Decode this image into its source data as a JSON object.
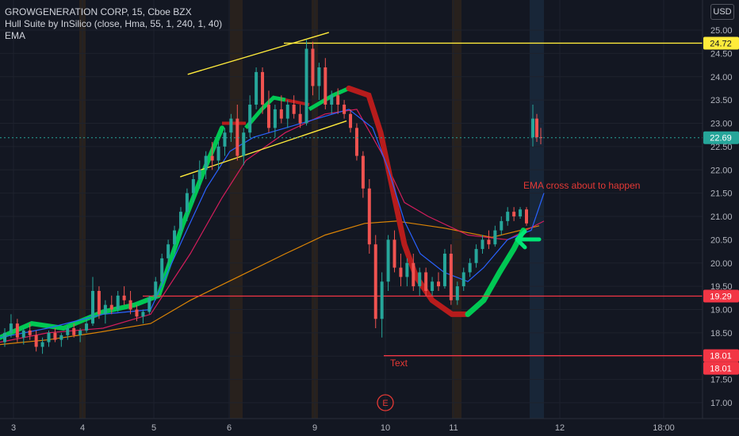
{
  "header": {
    "symbol_line": "GROWGENERATION CORP, 15, Cboe BZX",
    "indicator_1": "Hull Suite by InSilico (close, Hma, 55, 1, 240, 1, 40)",
    "indicator_2": "EMA",
    "currency": "USD"
  },
  "colors": {
    "background": "#131722",
    "grid": "#1e222d",
    "up_candle": "#26a69a",
    "down_candle": "#ef5350",
    "hull_up": "#00c853",
    "hull_down": "#b71c1c",
    "ema_fast": "#2962ff",
    "ema_mid": "#e91e63",
    "ema_slow": "#ff9800",
    "hline_yellow": "#ffeb3b",
    "hline_red": "#f23645",
    "session_band": "#3a2a1a",
    "live_band": "#1a2a3e",
    "arrow": "#00e676"
  },
  "annotations": {
    "ema_cross": "EMA cross about to happen",
    "text_label": "Text",
    "earnings_marker": "E"
  },
  "chart_data": {
    "type": "candlestick",
    "x_ticks": [
      "3",
      "4",
      "5",
      "6",
      "9",
      "10",
      "11",
      "12",
      "18:00"
    ],
    "y_ticks": [
      "25.00",
      "24.50",
      "24.00",
      "23.50",
      "23.00",
      "22.50",
      "22.00",
      "21.50",
      "21.00",
      "20.50",
      "20.00",
      "19.50",
      "19.00",
      "18.50",
      "18.00",
      "17.50",
      "17.00"
    ],
    "ylim": [
      16.8,
      25.3
    ],
    "price_labels": [
      {
        "value": 24.72,
        "text": "24.72",
        "kind": "yellow"
      },
      {
        "value": 22.69,
        "text": "22.69",
        "kind": "teal"
      },
      {
        "value": 19.29,
        "text": "19.29",
        "kind": "red"
      },
      {
        "value": 18.01,
        "text": "18.01",
        "kind": "red"
      },
      {
        "value": 18.01,
        "text": "18.01",
        "kind": "red"
      }
    ],
    "horizontal_lines": [
      {
        "value": 24.72,
        "kind": "yellow"
      },
      {
        "value": 19.29,
        "kind": "red"
      },
      {
        "value": 18.01,
        "kind": "red"
      }
    ],
    "channel_lines": [
      {
        "from": {
          "day": "5.45",
          "price": 24.05
        },
        "to": {
          "day": "9.2",
          "price": 24.95
        }
      },
      {
        "from": {
          "day": "5.35",
          "price": 21.85
        },
        "to": {
          "day": "9.45",
          "price": 23.05
        }
      }
    ],
    "candles_ohlc": [
      [
        18.3,
        18.6,
        18.2,
        18.5
      ],
      [
        18.5,
        18.9,
        18.4,
        18.7
      ],
      [
        18.7,
        18.8,
        18.3,
        18.4
      ],
      [
        18.4,
        18.6,
        18.25,
        18.55
      ],
      [
        18.55,
        18.7,
        18.35,
        18.45
      ],
      [
        18.45,
        18.55,
        18.1,
        18.2
      ],
      [
        18.2,
        18.4,
        18.05,
        18.3
      ],
      [
        18.3,
        18.55,
        18.2,
        18.5
      ],
      [
        18.5,
        18.6,
        18.3,
        18.35
      ],
      [
        18.35,
        18.5,
        18.2,
        18.45
      ],
      [
        18.45,
        18.65,
        18.35,
        18.6
      ],
      [
        18.6,
        18.7,
        18.4,
        18.45
      ],
      [
        18.45,
        18.6,
        18.3,
        18.55
      ],
      [
        18.55,
        18.8,
        18.5,
        18.7
      ],
      [
        18.7,
        19.7,
        18.65,
        19.4
      ],
      [
        19.4,
        19.5,
        18.8,
        18.9
      ],
      [
        18.9,
        19.2,
        18.7,
        19.1
      ],
      [
        19.1,
        19.3,
        18.9,
        19.0
      ],
      [
        19.0,
        19.4,
        18.95,
        19.3
      ],
      [
        19.3,
        19.5,
        19.1,
        19.2
      ],
      [
        19.2,
        19.4,
        18.9,
        19.0
      ],
      [
        19.0,
        19.1,
        18.75,
        18.85
      ],
      [
        18.85,
        19.0,
        18.7,
        18.95
      ],
      [
        18.95,
        19.3,
        18.9,
        19.25
      ],
      [
        19.25,
        19.7,
        19.2,
        19.6
      ],
      [
        19.6,
        20.2,
        19.5,
        20.1
      ],
      [
        20.1,
        20.5,
        19.9,
        20.4
      ],
      [
        20.4,
        20.8,
        20.2,
        20.7
      ],
      [
        20.7,
        21.2,
        20.6,
        21.1
      ],
      [
        21.1,
        21.6,
        20.9,
        21.5
      ],
      [
        21.5,
        21.9,
        21.3,
        21.8
      ],
      [
        21.8,
        22.2,
        21.6,
        22.0
      ],
      [
        22.0,
        22.4,
        21.8,
        22.3
      ],
      [
        22.3,
        22.6,
        22.0,
        22.2
      ],
      [
        22.2,
        22.6,
        22.0,
        22.5
      ],
      [
        22.5,
        22.9,
        22.3,
        22.8
      ],
      [
        22.8,
        23.2,
        22.6,
        23.1
      ],
      [
        23.1,
        23.4,
        22.2,
        22.3
      ],
      [
        22.3,
        22.9,
        22.1,
        22.8
      ],
      [
        22.8,
        23.6,
        22.7,
        23.4
      ],
      [
        23.4,
        24.2,
        23.3,
        24.1
      ],
      [
        24.1,
        24.2,
        23.2,
        23.4
      ],
      [
        23.4,
        23.7,
        22.8,
        22.9
      ],
      [
        22.9,
        23.4,
        22.7,
        23.3
      ],
      [
        23.3,
        23.6,
        23.0,
        23.1
      ],
      [
        23.1,
        23.5,
        22.9,
        23.4
      ],
      [
        23.4,
        23.6,
        23.1,
        23.2
      ],
      [
        23.2,
        23.4,
        22.9,
        23.0
      ],
      [
        23.0,
        24.8,
        22.95,
        24.6
      ],
      [
        24.6,
        24.75,
        23.6,
        23.8
      ],
      [
        23.8,
        24.3,
        23.5,
        24.2
      ],
      [
        24.2,
        24.4,
        23.3,
        23.4
      ],
      [
        23.4,
        23.7,
        23.2,
        23.6
      ],
      [
        23.6,
        23.75,
        23.2,
        23.4
      ],
      [
        23.4,
        23.5,
        23.1,
        23.2
      ],
      [
        23.2,
        23.3,
        22.8,
        22.9
      ],
      [
        22.9,
        23.0,
        22.2,
        22.3
      ],
      [
        22.3,
        22.4,
        21.4,
        21.6
      ],
      [
        21.6,
        21.8,
        20.2,
        20.4
      ],
      [
        20.4,
        20.6,
        18.6,
        18.8
      ],
      [
        18.8,
        19.8,
        18.4,
        19.6
      ],
      [
        19.6,
        20.6,
        19.4,
        20.5
      ],
      [
        20.5,
        20.7,
        19.8,
        19.9
      ],
      [
        19.9,
        20.2,
        19.5,
        19.7
      ],
      [
        19.7,
        20.1,
        19.5,
        20.0
      ],
      [
        20.0,
        20.2,
        19.4,
        19.5
      ],
      [
        19.5,
        19.9,
        19.3,
        19.8
      ],
      [
        19.8,
        19.9,
        19.3,
        19.4
      ],
      [
        19.4,
        19.7,
        19.3,
        19.6
      ],
      [
        19.6,
        19.8,
        19.4,
        19.5
      ],
      [
        19.5,
        20.3,
        19.45,
        20.2
      ],
      [
        20.2,
        20.4,
        19.1,
        19.2
      ],
      [
        19.2,
        19.6,
        19.1,
        19.5
      ],
      [
        19.5,
        19.9,
        19.4,
        19.8
      ],
      [
        19.8,
        20.1,
        19.7,
        20.0
      ],
      [
        20.0,
        20.4,
        19.9,
        20.3
      ],
      [
        20.3,
        20.6,
        20.2,
        20.5
      ],
      [
        20.5,
        20.7,
        20.3,
        20.4
      ],
      [
        20.4,
        20.8,
        20.35,
        20.7
      ],
      [
        20.7,
        21.0,
        20.6,
        20.9
      ],
      [
        20.9,
        21.2,
        20.8,
        21.1
      ],
      [
        21.1,
        21.2,
        20.9,
        21.0
      ],
      [
        21.0,
        21.2,
        20.95,
        21.15
      ],
      [
        21.15,
        21.2,
        20.8,
        20.85
      ],
      [
        22.7,
        23.4,
        22.5,
        23.1
      ],
      [
        23.1,
        23.2,
        22.6,
        22.7
      ],
      [
        22.7,
        22.9,
        22.55,
        22.69
      ]
    ]
  }
}
